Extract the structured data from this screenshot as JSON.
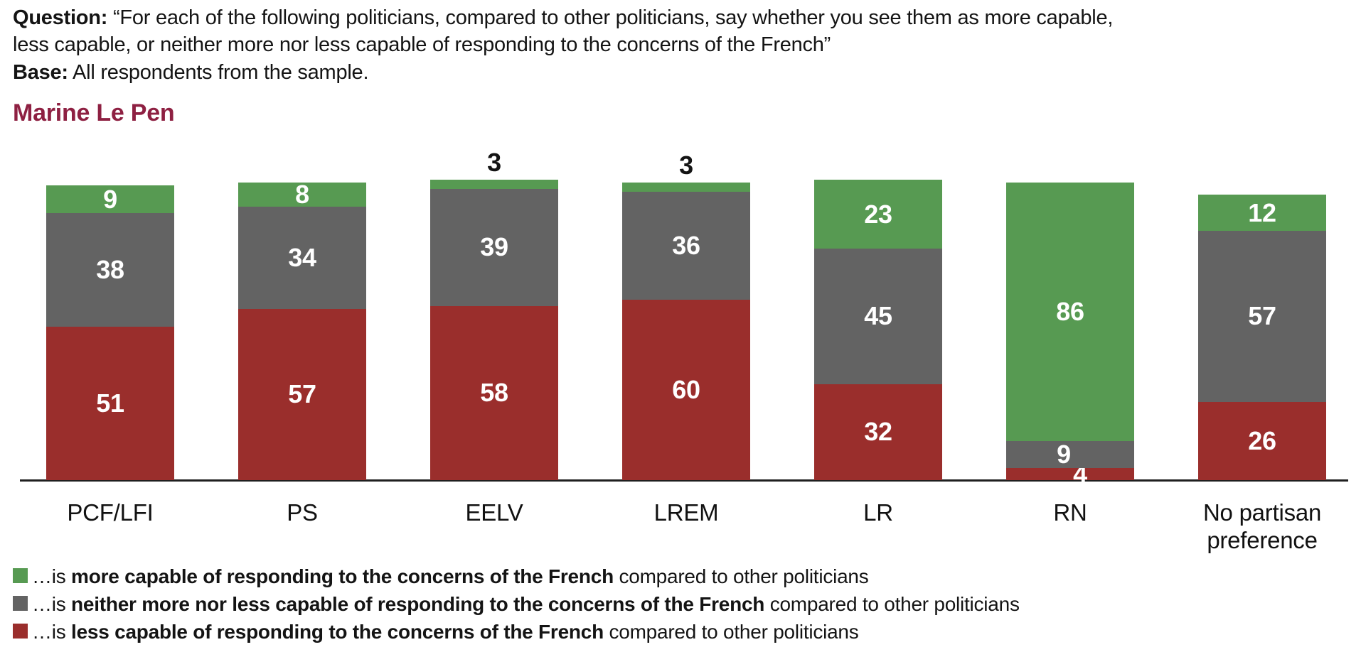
{
  "question": {
    "label": "Question:",
    "line1": "“For each of the following politicians, compared to other politicians, say whether you see them as more capable,",
    "line2": "less capable, or neither more nor less capable of responding to the concerns of the French”"
  },
  "base": {
    "label": "Base:",
    "text": "All respondents from the sample."
  },
  "title": "Marine Le Pen",
  "colors": {
    "title": "#8e2042",
    "more": "#579a52",
    "neither": "#636363",
    "less": "#9a2e2c",
    "axis": "#1f1f1f",
    "value_label": "#ffffff"
  },
  "chart_data": {
    "type": "bar",
    "stacked": true,
    "title": "Marine Le Pen",
    "categories": [
      "PCF/LFI",
      "PS",
      "EELV",
      "LREM",
      "LR",
      "RN",
      "No partisan preference"
    ],
    "series": [
      {
        "name": "more capable",
        "color": "#579a52",
        "values": [
          9,
          8,
          3,
          3,
          23,
          86,
          12
        ]
      },
      {
        "name": "neither more nor less capable",
        "color": "#636363",
        "values": [
          38,
          34,
          39,
          36,
          45,
          9,
          57
        ]
      },
      {
        "name": "less capable",
        "color": "#9a2e2c",
        "values": [
          51,
          57,
          58,
          60,
          32,
          4,
          26
        ]
      }
    ],
    "ylim": [
      0,
      100
    ],
    "grid": false,
    "value_labels": "inside-white, outside-black-when-segment-too-small",
    "legend_position": "bottom-left"
  },
  "legend": {
    "items": [
      {
        "color": "#579a52",
        "prefix": "…is ",
        "bold": "more capable of responding to the concerns of the French",
        "suffix": " compared to other politicians"
      },
      {
        "color": "#636363",
        "prefix": "…is ",
        "bold": "neither more nor less capable of responding to the concerns of the French",
        "suffix": " compared to other politicians"
      },
      {
        "color": "#9a2e2c",
        "prefix": "…is ",
        "bold": "less capable of responding to the concerns of the French",
        "suffix": " compared to other politicians"
      }
    ]
  }
}
